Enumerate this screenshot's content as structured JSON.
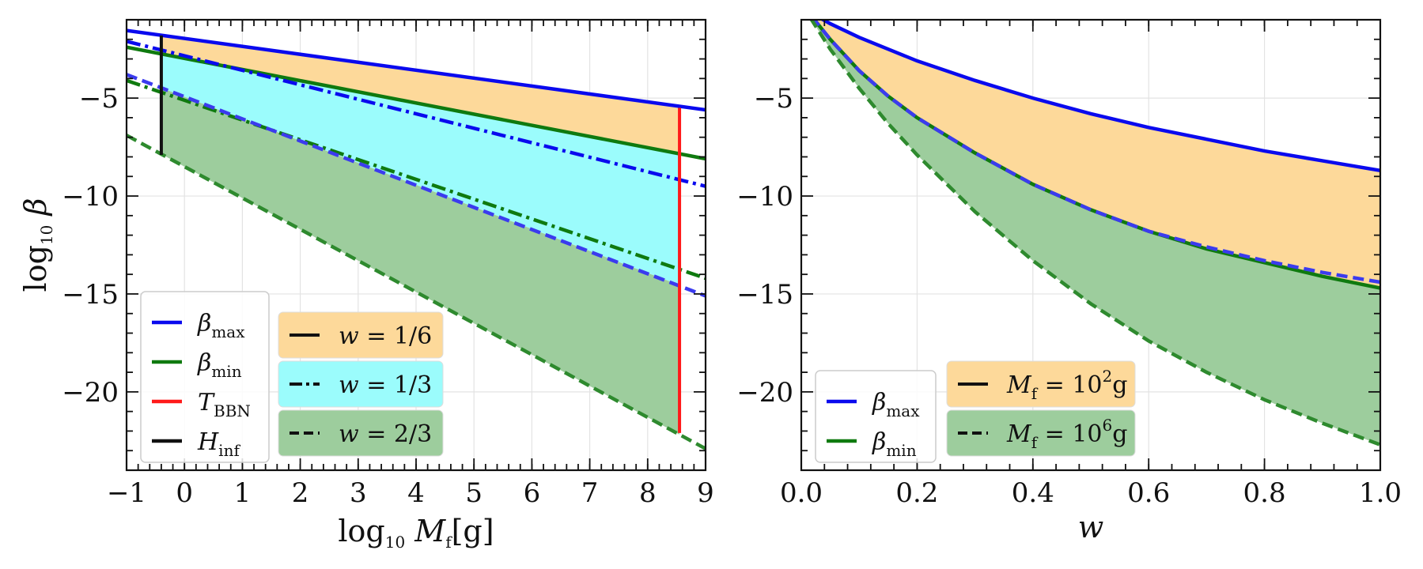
{
  "chart_data": [
    {
      "type": "line",
      "xlabel_main": "log",
      "xlabel_sub": "10",
      "xlabel_var": "M",
      "xlabel_var_sub": "f",
      "xlabel_unit": "[g]",
      "ylabel_main": "log",
      "ylabel_sub": "10",
      "ylabel_var": "β",
      "xlim": [
        -1,
        9
      ],
      "ylim": [
        -24,
        -1
      ],
      "xticks": [
        -1,
        0,
        1,
        2,
        3,
        4,
        5,
        6,
        7,
        8,
        9
      ],
      "yticks": [
        -5,
        -10,
        -15,
        -20
      ],
      "grid": true,
      "vlines": [
        {
          "name": "H_inf",
          "x": -0.4,
          "y": [
            -7.9,
            -1.8
          ],
          "color": "#111111"
        },
        {
          "name": "T_BBN",
          "x": 8.55,
          "y": [
            -22.1,
            -5.5
          ],
          "color": "#ff1a1a"
        }
      ],
      "series": [
        {
          "group": "beta_max",
          "w": "1/6",
          "style": "solid",
          "color": "#0a0aee",
          "x": [
            -1,
            9
          ],
          "y": [
            -1.55,
            -5.6
          ]
        },
        {
          "group": "beta_min",
          "w": "1/6",
          "style": "solid",
          "color": "#0f7a0f",
          "x": [
            -1,
            9
          ],
          "y": [
            -2.4,
            -8.1
          ]
        },
        {
          "group": "beta_max",
          "w": "1/3",
          "style": "dashdot",
          "color": "#0a0aee",
          "x": [
            -1,
            9
          ],
          "y": [
            -2.1,
            -9.5
          ]
        },
        {
          "group": "beta_min",
          "w": "1/3",
          "style": "dashdot",
          "color": "#0f7a0f",
          "x": [
            -1,
            9
          ],
          "y": [
            -4.1,
            -14.2
          ]
        },
        {
          "group": "beta_max",
          "w": "2/3",
          "style": "dashed",
          "color": "#3b3bee",
          "x": [
            -1,
            9
          ],
          "y": [
            -3.8,
            -15.1
          ]
        },
        {
          "group": "beta_min",
          "w": "2/3",
          "style": "dashed",
          "color": "#2e8a2e",
          "x": [
            -1,
            9
          ],
          "y": [
            -6.9,
            -22.9
          ]
        }
      ],
      "bands": [
        {
          "w": "1/6",
          "color": "#fdd99a",
          "upper": [
            [
              -0.4,
              -1.77
            ],
            [
              8.55,
              -5.42
            ]
          ],
          "lower": [
            [
              -0.4,
              -2.74
            ],
            [
              8.55,
              -7.88
            ]
          ]
        },
        {
          "w": "1/3",
          "color": "#9bfcfc",
          "upper": [
            [
              -0.4,
              -2.74
            ],
            [
              8.55,
              -7.88
            ]
          ],
          "lower": [
            [
              -0.4,
              -4.48
            ],
            [
              8.55,
              -14.55
            ]
          ]
        },
        {
          "w": "2/3",
          "color": "#9dcd9d",
          "upper": [
            [
              -0.4,
              -4.48
            ],
            [
              8.55,
              -14.55
            ]
          ],
          "lower": [
            [
              -0.4,
              -7.86
            ],
            [
              8.55,
              -22.18
            ]
          ]
        }
      ],
      "legend_lines": {
        "position": "lower-left",
        "entries": [
          {
            "label": "β",
            "sub": "max",
            "color": "#0a0aee"
          },
          {
            "label": "β",
            "sub": "min",
            "color": "#0f7a0f"
          },
          {
            "label": "T",
            "sub": "BBN",
            "color": "#ff1a1a"
          },
          {
            "label": "H",
            "sub": "inf",
            "color": "#111111"
          }
        ]
      },
      "legend_w": {
        "position": "lower-center",
        "entries": [
          {
            "label": "w = 1/6",
            "style": "solid",
            "bg": "#fdd99a"
          },
          {
            "label": "w = 1/3",
            "style": "dashdot",
            "bg": "#9bfcfc"
          },
          {
            "label": "w = 2/3",
            "style": "dashed",
            "bg": "#9dcd9d"
          }
        ]
      }
    },
    {
      "type": "line",
      "xlabel": "w",
      "xlim": [
        0,
        1
      ],
      "ylim": [
        -24,
        -1
      ],
      "xticks": [
        0.0,
        0.2,
        0.4,
        0.6,
        0.8,
        1.0
      ],
      "xtick_labels": [
        "0.0",
        "0.2",
        "0.4",
        "0.6",
        "0.8",
        "1.0"
      ],
      "yticks": [
        -5,
        -10,
        -15,
        -20
      ],
      "grid": true,
      "series": [
        {
          "group": "beta_max",
          "Mf": "10^2 g",
          "style": "solid",
          "color": "#0a0aee",
          "x": [
            0.0,
            0.02,
            0.05,
            0.1,
            0.15,
            0.2,
            0.3,
            0.4,
            0.5,
            0.6,
            0.7,
            0.8,
            0.9,
            1.0
          ],
          "y": [
            -0.2,
            -0.7,
            -1.2,
            -1.9,
            -2.5,
            -3.1,
            -4.1,
            -5.0,
            -5.8,
            -6.5,
            -7.1,
            -7.7,
            -8.2,
            -8.7
          ]
        },
        {
          "group": "beta_min",
          "Mf": "10^2 g",
          "style": "solid",
          "color": "#0f7a0f",
          "x": [
            0.0,
            0.02,
            0.05,
            0.1,
            0.15,
            0.2,
            0.3,
            0.4,
            0.5,
            0.6,
            0.7,
            0.8,
            0.9,
            1.0
          ],
          "y": [
            -0.2,
            -0.9,
            -2.0,
            -3.6,
            -4.9,
            -6.0,
            -7.8,
            -9.4,
            -10.7,
            -11.8,
            -12.7,
            -13.4,
            -14.1,
            -14.7
          ]
        },
        {
          "group": "beta_max",
          "Mf": "10^6 g",
          "style": "dashed",
          "color": "#3b3bee",
          "x": [
            0.0,
            0.02,
            0.05,
            0.1,
            0.15,
            0.2,
            0.3,
            0.4,
            0.5,
            0.6,
            0.7,
            0.8,
            0.9,
            1.0
          ],
          "y": [
            -0.2,
            -0.9,
            -2.0,
            -3.6,
            -4.9,
            -6.0,
            -7.8,
            -9.4,
            -10.7,
            -11.8,
            -12.6,
            -13.3,
            -13.9,
            -14.4
          ]
        },
        {
          "group": "beta_min",
          "Mf": "10^6 g",
          "style": "dashed",
          "color": "#2e8a2e",
          "x": [
            0.0,
            0.02,
            0.05,
            0.1,
            0.15,
            0.2,
            0.3,
            0.4,
            0.5,
            0.6,
            0.7,
            0.8,
            0.9,
            1.0
          ],
          "y": [
            -0.2,
            -1.1,
            -2.5,
            -4.5,
            -6.3,
            -7.9,
            -10.8,
            -13.3,
            -15.5,
            -17.4,
            -19.0,
            -20.4,
            -21.6,
            -22.7
          ]
        }
      ],
      "bands": [
        {
          "color": "#fdd99a",
          "upper_series": 0,
          "lower_series": 1
        },
        {
          "color": "#9dcd9d",
          "upper_series": 1,
          "lower_series": 3
        }
      ],
      "legend_lines": {
        "position": "lower-left",
        "entries": [
          {
            "label": "β",
            "sub": "max",
            "color": "#0a0aee"
          },
          {
            "label": "β",
            "sub": "min",
            "color": "#0f7a0f"
          }
        ]
      },
      "legend_mass": {
        "position": "lower-center",
        "entries": [
          {
            "prefix": "M",
            "psub": "f",
            "mid": " = 10",
            "sup": "2",
            "suffix": "g",
            "style": "solid",
            "bg": "#fdd99a"
          },
          {
            "prefix": "M",
            "psub": "f",
            "mid": " = 10",
            "sup": "6",
            "suffix": "g",
            "style": "dashed",
            "bg": "#9dcd9d"
          }
        ]
      }
    }
  ]
}
